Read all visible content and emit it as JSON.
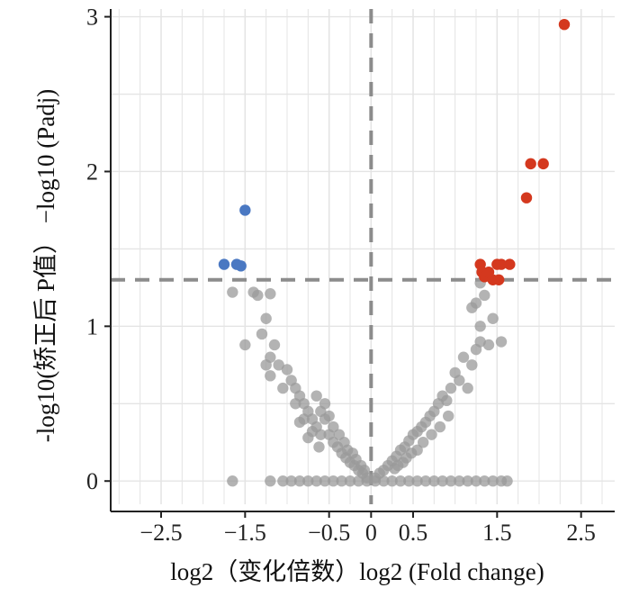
{
  "chart_data": {
    "type": "scatter",
    "xlabel": "log2（变化倍数）log2 (Fold change)",
    "ylabel": "-log10(矫正后 P值） −log10 (Padj)",
    "xlim": [
      -3.1,
      2.9
    ],
    "ylim": [
      -0.15,
      3.05
    ],
    "x_ticks": [
      {
        "value": -2.5,
        "label": "−2.5"
      },
      {
        "value": -1.5,
        "label": "−1.5"
      },
      {
        "value": -0.5,
        "label": "−0.5"
      },
      {
        "value": 0,
        "label": "0"
      },
      {
        "value": 0.5,
        "label": "0.5"
      },
      {
        "value": 1.5,
        "label": "1.5"
      },
      {
        "value": 2.5,
        "label": "2.5"
      }
    ],
    "y_ticks": [
      {
        "value": 0,
        "label": "0"
      },
      {
        "value": 1,
        "label": "1"
      },
      {
        "value": 2,
        "label": "2"
      },
      {
        "value": 3,
        "label": "3"
      }
    ],
    "grid": true,
    "threshold_lines": {
      "x": 0,
      "y": 1.3
    },
    "colors": {
      "up": "#d4381e",
      "down": "#4a78c2",
      "ns": "#9a9a9a",
      "threshold": "#8c8c8c"
    },
    "series": [
      {
        "key": "up",
        "points": [
          [
            2.3,
            2.95
          ],
          [
            1.9,
            2.05
          ],
          [
            2.05,
            2.05
          ],
          [
            1.85,
            1.83
          ],
          [
            1.3,
            1.4
          ],
          [
            1.32,
            1.35
          ],
          [
            1.35,
            1.32
          ],
          [
            1.4,
            1.35
          ],
          [
            1.45,
            1.3
          ],
          [
            1.5,
            1.4
          ],
          [
            1.52,
            1.3
          ],
          [
            1.55,
            1.4
          ],
          [
            1.65,
            1.4
          ]
        ]
      },
      {
        "key": "down",
        "points": [
          [
            -1.75,
            1.4
          ],
          [
            -1.6,
            1.4
          ],
          [
            -1.55,
            1.39
          ],
          [
            -1.5,
            1.75
          ]
        ]
      },
      {
        "key": "ns",
        "points": [
          [
            -1.65,
            1.22
          ],
          [
            -1.4,
            1.22
          ],
          [
            -1.35,
            1.2
          ],
          [
            -1.2,
            1.21
          ],
          [
            -1.25,
            1.05
          ],
          [
            -1.3,
            0.95
          ],
          [
            -1.5,
            0.88
          ],
          [
            -1.15,
            0.88
          ],
          [
            -1.2,
            0.8
          ],
          [
            -1.1,
            0.75
          ],
          [
            -1.25,
            0.75
          ],
          [
            -1.2,
            0.68
          ],
          [
            -1.0,
            0.72
          ],
          [
            -0.95,
            0.65
          ],
          [
            -1.05,
            0.6
          ],
          [
            -0.9,
            0.6
          ],
          [
            -0.85,
            0.55
          ],
          [
            -0.8,
            0.5
          ],
          [
            -0.9,
            0.5
          ],
          [
            -0.75,
            0.45
          ],
          [
            -0.8,
            0.4
          ],
          [
            -0.7,
            0.4
          ],
          [
            -0.65,
            0.35
          ],
          [
            -0.6,
            0.45
          ],
          [
            -0.55,
            0.4
          ],
          [
            -0.6,
            0.3
          ],
          [
            -0.5,
            0.3
          ],
          [
            -0.45,
            0.25
          ],
          [
            -0.4,
            0.22
          ],
          [
            -0.35,
            0.18
          ],
          [
            -0.3,
            0.15
          ],
          [
            -0.25,
            0.12
          ],
          [
            -0.2,
            0.1
          ],
          [
            -0.15,
            0.07
          ],
          [
            -0.1,
            0.05
          ],
          [
            -0.05,
            0.02
          ],
          [
            -0.7,
            0.32
          ],
          [
            -0.65,
            0.55
          ],
          [
            -0.55,
            0.5
          ],
          [
            -0.5,
            0.42
          ],
          [
            -0.45,
            0.35
          ],
          [
            -0.38,
            0.3
          ],
          [
            -0.32,
            0.25
          ],
          [
            -0.28,
            0.2
          ],
          [
            -0.22,
            0.18
          ],
          [
            -0.18,
            0.14
          ],
          [
            -0.12,
            0.1
          ],
          [
            -0.08,
            0.07
          ],
          [
            -0.85,
            0.38
          ],
          [
            -0.75,
            0.28
          ],
          [
            -0.62,
            0.22
          ],
          [
            -1.65,
            0.0
          ],
          [
            1.3,
            1.28
          ],
          [
            1.35,
            1.2
          ],
          [
            1.25,
            1.15
          ],
          [
            1.2,
            1.12
          ],
          [
            1.3,
            1.0
          ],
          [
            1.45,
            1.05
          ],
          [
            1.3,
            0.9
          ],
          [
            1.25,
            0.85
          ],
          [
            1.55,
            0.9
          ],
          [
            1.1,
            0.8
          ],
          [
            1.2,
            0.75
          ],
          [
            1.0,
            0.7
          ],
          [
            1.05,
            0.65
          ],
          [
            0.95,
            0.6
          ],
          [
            0.85,
            0.55
          ],
          [
            0.8,
            0.5
          ],
          [
            0.9,
            0.52
          ],
          [
            0.75,
            0.45
          ],
          [
            0.7,
            0.42
          ],
          [
            0.65,
            0.38
          ],
          [
            0.6,
            0.35
          ],
          [
            0.55,
            0.32
          ],
          [
            0.5,
            0.3
          ],
          [
            0.45,
            0.26
          ],
          [
            0.4,
            0.22
          ],
          [
            0.35,
            0.2
          ],
          [
            0.3,
            0.16
          ],
          [
            0.25,
            0.13
          ],
          [
            0.2,
            0.1
          ],
          [
            0.15,
            0.07
          ],
          [
            0.1,
            0.05
          ],
          [
            0.05,
            0.02
          ],
          [
            0.72,
            0.3
          ],
          [
            0.62,
            0.25
          ],
          [
            0.55,
            0.2
          ],
          [
            0.48,
            0.18
          ],
          [
            0.42,
            0.15
          ],
          [
            0.38,
            0.12
          ],
          [
            0.32,
            0.1
          ],
          [
            0.28,
            0.08
          ],
          [
            1.15,
            0.6
          ],
          [
            0.92,
            0.42
          ],
          [
            0.82,
            0.35
          ],
          [
            1.4,
            0.88
          ]
        ]
      },
      {
        "key": "ns-baseline",
        "points": [
          [
            -1.2,
            0.0
          ],
          [
            -1.05,
            0.0
          ],
          [
            -0.95,
            0.0
          ],
          [
            -0.85,
            0.0
          ],
          [
            -0.75,
            0.0
          ],
          [
            -0.65,
            0.0
          ],
          [
            -0.55,
            0.0
          ],
          [
            -0.45,
            0.0
          ],
          [
            -0.35,
            0.0
          ],
          [
            -0.25,
            0.0
          ],
          [
            -0.15,
            0.0
          ],
          [
            -0.05,
            0.0
          ],
          [
            0.05,
            0.0
          ],
          [
            0.15,
            0.0
          ],
          [
            0.25,
            0.0
          ],
          [
            0.35,
            0.0
          ],
          [
            0.45,
            0.0
          ],
          [
            0.55,
            0.0
          ],
          [
            0.65,
            0.0
          ],
          [
            0.75,
            0.0
          ],
          [
            0.85,
            0.0
          ],
          [
            0.95,
            0.0
          ],
          [
            1.05,
            0.0
          ],
          [
            1.15,
            0.0
          ],
          [
            1.25,
            0.0
          ],
          [
            1.35,
            0.0
          ],
          [
            1.45,
            0.0
          ],
          [
            1.55,
            0.0
          ],
          [
            1.62,
            0.0
          ]
        ]
      }
    ]
  }
}
